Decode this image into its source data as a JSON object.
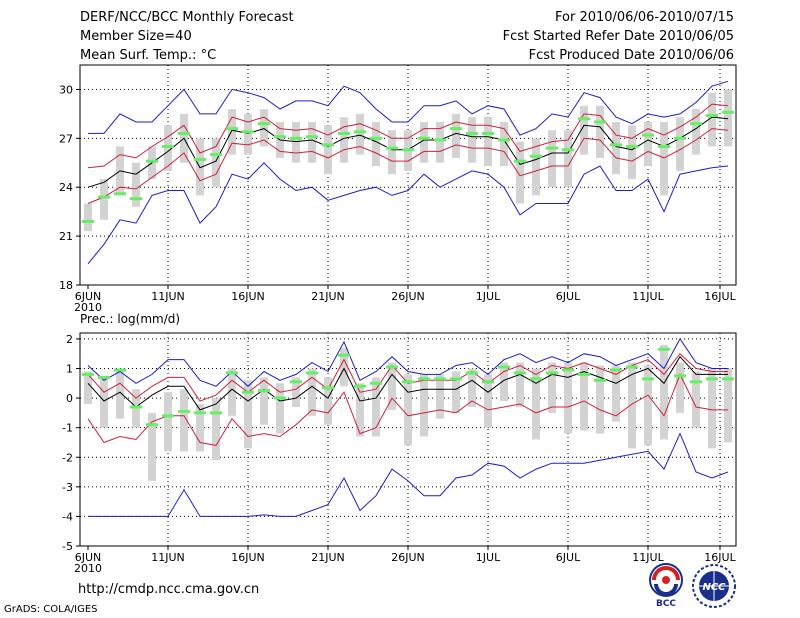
{
  "header": {
    "title": "DERF/NCC/BCC Monthly Forecast",
    "member_size": "Member Size=40",
    "variable": "Mean Surf. Temp.: °C",
    "for_range": "For 2010/06/06-2010/07/15",
    "started": "Fcst Started Refer Date 2010/06/05",
    "produced": "Fcst Produced Date 2010/06/06"
  },
  "footer": {
    "url": "http://cmdp.ncc.cma.gov.cn",
    "credit": "GrADS: COLA/IGES",
    "logo_bcc": "BCC",
    "logo_ncc": "NCC"
  },
  "colors": {
    "grid": "#000000",
    "box": "#d3d3d3",
    "median": "#66ee66",
    "mean": "#000000",
    "band": "#d0203a",
    "extreme": "#1c1ccc"
  },
  "chart_data": [
    {
      "type": "line",
      "panel": "temperature",
      "title": "Mean Surf. Temp.: °C",
      "ylim": [
        18,
        31.5
      ],
      "yticks": [
        18,
        21,
        24,
        27,
        30
      ],
      "xlim": [
        -0.5,
        40.5
      ],
      "xticks": [
        {
          "x": 0,
          "label": "6JUN",
          "sub": "2010"
        },
        {
          "x": 5,
          "label": "11JUN"
        },
        {
          "x": 10,
          "label": "16JUN"
        },
        {
          "x": 15,
          "label": "21JUN"
        },
        {
          "x": 20,
          "label": "26JUN"
        },
        {
          "x": 25,
          "label": "1JUL"
        },
        {
          "x": 30,
          "label": "6JUL"
        },
        {
          "x": 35,
          "label": "11JUL"
        },
        {
          "x": 39.5,
          "label": "16JUL"
        }
      ],
      "grid": "dotted",
      "mean": [
        24.0,
        24.3,
        25.0,
        24.8,
        25.5,
        26.2,
        27.0,
        25.2,
        25.6,
        27.5,
        27.3,
        27.6,
        26.9,
        26.8,
        26.9,
        26.5,
        27.0,
        27.2,
        26.8,
        26.3,
        26.3,
        26.9,
        26.9,
        27.3,
        27.1,
        27.1,
        26.9,
        25.4,
        25.7,
        26.1,
        26.1,
        27.8,
        27.7,
        26.5,
        26.3,
        26.9,
        26.5,
        27.0,
        27.6,
        28.3,
        28.2
      ],
      "upper": [
        25.2,
        25.3,
        26.0,
        25.8,
        26.5,
        27.1,
        27.8,
        26.1,
        26.5,
        28.3,
        28.0,
        28.3,
        27.6,
        27.5,
        27.6,
        27.2,
        27.7,
        27.9,
        27.5,
        27.0,
        27.0,
        27.6,
        27.6,
        28.0,
        27.8,
        27.8,
        27.6,
        26.2,
        26.5,
        26.8,
        26.9,
        28.5,
        28.4,
        27.2,
        27.0,
        27.6,
        27.2,
        27.7,
        28.3,
        29.1,
        29.0
      ],
      "lower": [
        23.0,
        23.4,
        24.0,
        23.9,
        24.6,
        25.3,
        26.1,
        24.4,
        24.8,
        26.7,
        26.6,
        26.9,
        26.2,
        26.1,
        26.2,
        25.8,
        26.3,
        26.5,
        26.1,
        25.6,
        25.6,
        26.2,
        26.2,
        26.6,
        26.4,
        26.4,
        26.2,
        24.7,
        25.0,
        25.3,
        25.3,
        27.0,
        26.9,
        25.8,
        25.6,
        26.2,
        25.8,
        26.3,
        26.9,
        27.6,
        27.5
      ],
      "max": [
        27.3,
        27.3,
        28.5,
        28.0,
        28.0,
        29.0,
        30.0,
        28.5,
        28.5,
        30.0,
        29.8,
        29.5,
        28.8,
        29.3,
        29.3,
        29.0,
        30.2,
        29.8,
        28.8,
        28.0,
        28.0,
        29.0,
        29.0,
        29.3,
        28.5,
        29.0,
        28.8,
        27.2,
        27.6,
        28.5,
        28.3,
        29.8,
        29.5,
        28.3,
        27.9,
        28.5,
        28.3,
        28.5,
        29.2,
        30.2,
        30.5
      ],
      "min": [
        19.3,
        20.5,
        22.0,
        21.8,
        23.5,
        23.8,
        23.8,
        21.8,
        22.8,
        24.8,
        24.5,
        25.5,
        24.5,
        23.8,
        24.0,
        23.2,
        23.5,
        23.8,
        24.0,
        23.5,
        23.8,
        24.8,
        24.0,
        24.5,
        25.0,
        24.8,
        24.0,
        22.3,
        23.0,
        23.0,
        23.0,
        24.8,
        25.3,
        23.8,
        23.8,
        24.5,
        22.5,
        24.8,
        25.0,
        25.2,
        25.3
      ],
      "median": [
        21.9,
        23.4,
        23.6,
        23.3,
        25.6,
        26.5,
        27.3,
        25.7,
        26.0,
        27.6,
        27.4,
        27.9,
        27.1,
        27.0,
        27.1,
        26.6,
        27.3,
        27.4,
        27.0,
        26.4,
        26.3,
        27.0,
        26.9,
        27.6,
        27.3,
        27.3,
        26.9,
        25.6,
        25.9,
        26.4,
        26.3,
        28.2,
        28.0,
        26.6,
        26.5,
        27.2,
        26.5,
        27.0,
        27.9,
        28.4,
        28.6
      ],
      "box_hi": [
        23.0,
        24.5,
        26.5,
        25.5,
        26.5,
        27.8,
        28.5,
        27.0,
        27.0,
        28.8,
        28.5,
        28.8,
        28.0,
        28.0,
        28.0,
        27.8,
        28.3,
        28.5,
        28.0,
        27.5,
        27.5,
        28.0,
        28.0,
        28.5,
        28.3,
        28.3,
        28.0,
        26.8,
        27.0,
        27.5,
        27.5,
        29.0,
        29.0,
        28.0,
        27.8,
        28.0,
        28.0,
        28.3,
        28.8,
        29.8,
        30.0
      ],
      "box_lo": [
        21.3,
        22.0,
        23.5,
        22.8,
        24.5,
        25.0,
        25.5,
        23.5,
        24.0,
        26.0,
        26.0,
        26.5,
        25.8,
        25.5,
        25.5,
        24.8,
        25.5,
        26.0,
        25.3,
        24.8,
        25.0,
        25.5,
        25.5,
        25.8,
        25.5,
        25.3,
        25.3,
        23.0,
        23.5,
        24.0,
        24.0,
        26.0,
        25.8,
        24.8,
        24.5,
        25.3,
        23.5,
        25.0,
        26.0,
        26.5,
        26.5
      ]
    },
    {
      "type": "line",
      "panel": "precipitation",
      "title": "Prec.: log(mm/d)",
      "ylim": [
        -5,
        2.2
      ],
      "yticks": [
        -5,
        -4,
        -3,
        -2,
        -1,
        0,
        1,
        2
      ],
      "xlim": [
        -0.5,
        40.5
      ],
      "xticks": [
        {
          "x": 0,
          "label": "6JUN",
          "sub": "2010"
        },
        {
          "x": 5,
          "label": "11JUN"
        },
        {
          "x": 10,
          "label": "16JUN"
        },
        {
          "x": 15,
          "label": "21JUN"
        },
        {
          "x": 20,
          "label": "26JUN"
        },
        {
          "x": 25,
          "label": "1JUL"
        },
        {
          "x": 30,
          "label": "6JUL"
        },
        {
          "x": 35,
          "label": "11JUL"
        },
        {
          "x": 39.5,
          "label": "16JUL"
        }
      ],
      "grid": "dotted",
      "mean": [
        0.5,
        -0.1,
        0.2,
        -0.3,
        0.1,
        0.4,
        0.4,
        -0.4,
        -0.2,
        0.3,
        -0.1,
        0.3,
        -0.1,
        0.0,
        0.4,
        0.0,
        1.0,
        -0.1,
        0.0,
        0.8,
        0.2,
        0.3,
        0.3,
        0.3,
        0.6,
        0.2,
        0.6,
        0.8,
        0.5,
        0.8,
        0.7,
        0.9,
        0.7,
        0.5,
        0.8,
        1.0,
        0.5,
        1.4,
        0.8,
        0.8,
        0.8
      ],
      "upper": [
        0.8,
        0.2,
        0.5,
        0.0,
        0.4,
        0.7,
        0.7,
        -0.1,
        0.1,
        0.6,
        0.2,
        0.6,
        0.2,
        0.3,
        0.7,
        0.3,
        1.3,
        0.2,
        0.3,
        1.1,
        0.5,
        0.6,
        0.6,
        0.6,
        0.9,
        0.5,
        0.9,
        1.1,
        0.8,
        1.1,
        1.0,
        1.2,
        1.0,
        0.8,
        1.1,
        1.3,
        0.8,
        1.5,
        1.0,
        0.9,
        0.9
      ],
      "lower": [
        -0.7,
        -1.5,
        -1.3,
        -1.4,
        -0.8,
        -0.6,
        -0.6,
        -1.5,
        -1.6,
        -0.7,
        -1.3,
        -1.2,
        -1.3,
        -0.9,
        -0.4,
        -0.5,
        0.2,
        -1.2,
        -1.0,
        0.0,
        -0.6,
        -0.5,
        -0.4,
        -0.5,
        -0.1,
        -0.4,
        -0.3,
        -0.2,
        -0.5,
        -0.3,
        -0.3,
        -0.1,
        -0.4,
        -0.6,
        -0.2,
        0.1,
        -0.6,
        0.8,
        -0.3,
        -0.4,
        -0.4
      ],
      "max": [
        1.1,
        0.6,
        0.9,
        0.5,
        0.8,
        1.3,
        1.3,
        0.6,
        0.4,
        0.9,
        0.4,
        0.9,
        0.6,
        0.8,
        1.2,
        0.9,
        1.9,
        0.6,
        0.9,
        1.4,
        0.9,
        0.8,
        0.8,
        1.1,
        1.2,
        0.8,
        1.3,
        1.5,
        1.2,
        1.4,
        1.2,
        1.5,
        1.4,
        1.1,
        1.3,
        1.5,
        1.0,
        2.0,
        1.2,
        1.0,
        1.0
      ],
      "min": [
        -4.0,
        -4.0,
        -4.0,
        -4.0,
        -4.0,
        -4.0,
        -3.1,
        -4.0,
        -4.0,
        -4.0,
        -4.0,
        -3.95,
        -4.0,
        -4.0,
        -3.8,
        -3.6,
        -2.7,
        -3.8,
        -3.3,
        -2.4,
        -2.8,
        -3.3,
        -3.3,
        -2.7,
        -2.6,
        -2.2,
        -2.3,
        -2.7,
        -2.4,
        -2.2,
        -2.2,
        -2.2,
        -2.1,
        -2.0,
        -1.9,
        -1.8,
        -2.4,
        -1.2,
        -2.5,
        -2.7,
        -2.5
      ],
      "median": [
        0.8,
        0.7,
        0.95,
        -0.3,
        -0.9,
        -0.6,
        -0.45,
        -0.5,
        -0.5,
        0.85,
        0.2,
        0.25,
        0.0,
        0.55,
        0.85,
        0.35,
        1.45,
        0.4,
        0.5,
        1.05,
        0.55,
        0.65,
        0.65,
        0.65,
        0.85,
        0.55,
        1.05,
        0.85,
        0.65,
        0.85,
        0.95,
        0.8,
        0.6,
        0.95,
        1.05,
        0.65,
        1.65,
        0.75,
        0.55,
        0.65,
        0.65
      ],
      "box_hi": [
        0.9,
        0.7,
        1.0,
        0.3,
        -0.5,
        0.2,
        0.3,
        -0.2,
        0.0,
        1.0,
        0.6,
        0.7,
        0.5,
        0.7,
        1.0,
        0.7,
        1.7,
        0.5,
        0.7,
        1.2,
        0.8,
        0.8,
        0.8,
        0.9,
        1.0,
        0.8,
        1.2,
        1.2,
        1.0,
        1.2,
        1.2,
        1.2,
        1.1,
        1.1,
        1.2,
        1.1,
        1.8,
        1.2,
        0.9,
        1.0,
        1.0
      ],
      "box_lo": [
        -0.2,
        -1.0,
        -0.7,
        -1.0,
        -2.8,
        -1.8,
        -1.8,
        -1.8,
        -2.1,
        -0.6,
        -1.7,
        -0.9,
        -1.2,
        -0.3,
        -0.6,
        -0.9,
        0.4,
        -1.3,
        -1.3,
        -0.4,
        -1.6,
        -1.3,
        -0.7,
        -0.5,
        -0.3,
        -1.0,
        -0.1,
        -0.3,
        -1.4,
        -0.5,
        -1.2,
        -1.1,
        -1.2,
        -0.8,
        -1.7,
        -1.6,
        -1.4,
        -0.5,
        -1.0,
        -1.7,
        -1.5
      ]
    }
  ]
}
